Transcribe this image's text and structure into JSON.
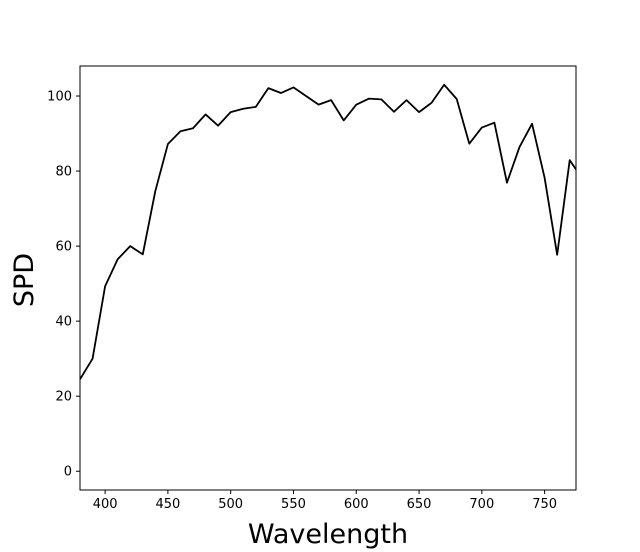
{
  "chart_data": {
    "type": "line",
    "title": "",
    "xlabel": "Wavelength",
    "ylabel": "SPD",
    "xlim": [
      380,
      775
    ],
    "ylim": [
      -5,
      108
    ],
    "xticks": [
      400,
      450,
      500,
      550,
      600,
      650,
      700,
      750
    ],
    "yticks": [
      0,
      20,
      40,
      60,
      80,
      100
    ],
    "grid": false,
    "legend": "none",
    "series": [
      {
        "color": "#000000",
        "x": [
          380,
          390,
          400,
          410,
          420,
          430,
          440,
          450,
          460,
          470,
          480,
          490,
          500,
          510,
          520,
          530,
          540,
          550,
          560,
          570,
          580,
          590,
          600,
          610,
          620,
          630,
          640,
          650,
          660,
          670,
          680,
          690,
          700,
          710,
          720,
          730,
          740,
          750,
          760,
          770,
          780
        ],
        "y": [
          24.5,
          30.0,
          49.3,
          56.5,
          60.0,
          57.8,
          74.7,
          87.2,
          90.6,
          91.4,
          95.1,
          92.1,
          95.7,
          96.6,
          97.1,
          102.1,
          100.8,
          102.3,
          100.0,
          97.7,
          98.9,
          93.5,
          97.7,
          99.3,
          99.1,
          95.8,
          98.9,
          95.7,
          98.2,
          103.0,
          99.2,
          87.3,
          91.6,
          92.9,
          76.9,
          86.4,
          92.6,
          78.2,
          57.7,
          82.9,
          78.0
        ]
      }
    ]
  }
}
